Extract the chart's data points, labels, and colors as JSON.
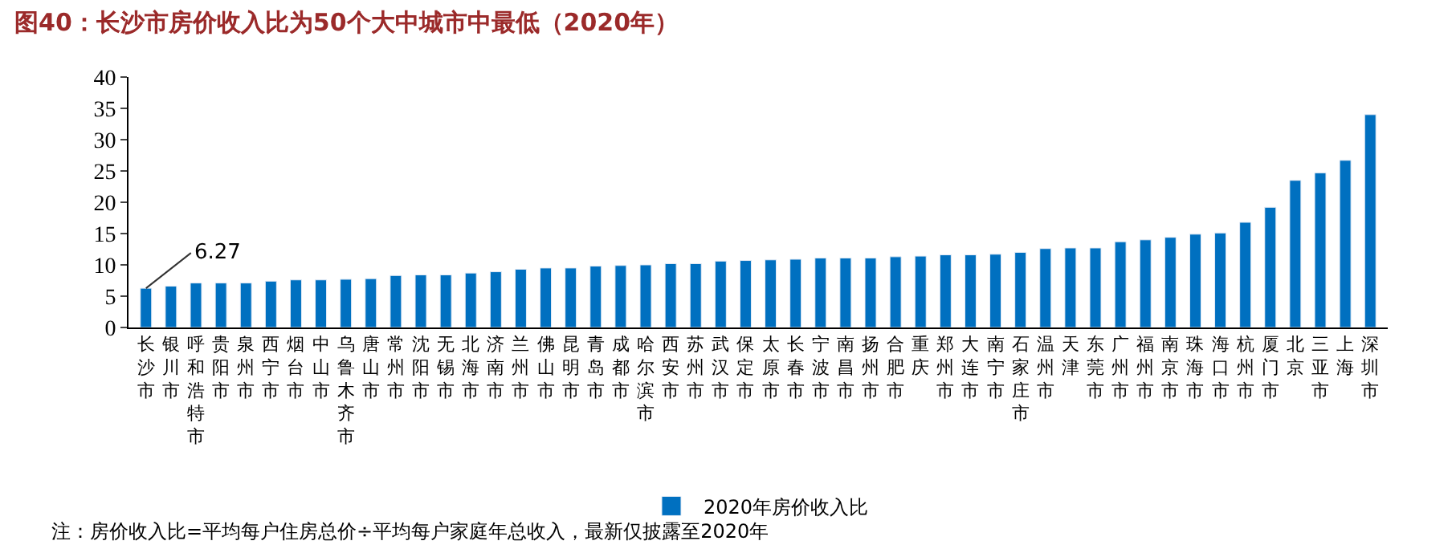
{
  "chart_data": {
    "type": "bar",
    "title": "图40：长沙市房价收入比为50个大中城市中最低（2020年）",
    "categories": [
      "长沙市",
      "银川市",
      "呼和浩特市",
      "贵阳市",
      "泉州市",
      "西宁市",
      "烟台市",
      "中山市",
      "乌鲁木齐市",
      "唐山市",
      "常州市",
      "沈阳市",
      "无锡市",
      "北海市",
      "济南市",
      "兰州市",
      "佛山市",
      "昆明市",
      "青岛市",
      "成都市",
      "哈尔滨市",
      "西安市",
      "苏州市",
      "武汉市",
      "保定市",
      "太原市",
      "长春市",
      "宁波市",
      "南昌市",
      "扬州市",
      "合肥市",
      "重庆",
      "郑州市",
      "大连市",
      "南宁市",
      "石家庄市",
      "温州市",
      "天津",
      "东莞市",
      "广州市",
      "福州市",
      "南京市",
      "珠海市",
      "海口市",
      "杭州市",
      "厦门市",
      "北京",
      "三亚市",
      "上海",
      "深圳市"
    ],
    "series": [
      {
        "name": "2020年房价收入比",
        "color": "#0070c0",
        "values": [
          6.27,
          6.6,
          7.1,
          7.1,
          7.1,
          7.4,
          7.6,
          7.6,
          7.7,
          7.8,
          8.3,
          8.4,
          8.4,
          8.7,
          8.9,
          9.3,
          9.5,
          9.5,
          9.8,
          9.9,
          10.0,
          10.2,
          10.2,
          10.6,
          10.7,
          10.8,
          10.9,
          11.1,
          11.1,
          11.1,
          11.3,
          11.4,
          11.6,
          11.6,
          11.7,
          12.0,
          12.6,
          12.7,
          12.7,
          13.7,
          14.0,
          14.4,
          14.9,
          15.1,
          16.8,
          19.2,
          23.5,
          24.7,
          26.7,
          34.0
        ],
        "value_labels": [
          "6.27",
          null,
          null,
          null,
          null,
          null,
          null,
          null,
          null,
          null,
          null,
          null,
          null,
          null,
          null,
          null,
          null,
          null,
          null,
          null,
          null,
          null,
          null,
          null,
          null,
          null,
          null,
          null,
          null,
          null,
          null,
          null,
          null,
          null,
          null,
          null,
          null,
          null,
          null,
          null,
          null,
          null,
          null,
          null,
          null,
          null,
          null,
          null,
          null,
          null
        ]
      }
    ],
    "ylim": [
      0,
      40
    ],
    "yticks": [
      0,
      5,
      10,
      15,
      20,
      25,
      30,
      35,
      40
    ],
    "legend": "bottom",
    "annotations": [
      "注：房价收入比=平均每户住房总价÷平均每户家庭年总收入，最新仅披露至2020年"
    ]
  }
}
